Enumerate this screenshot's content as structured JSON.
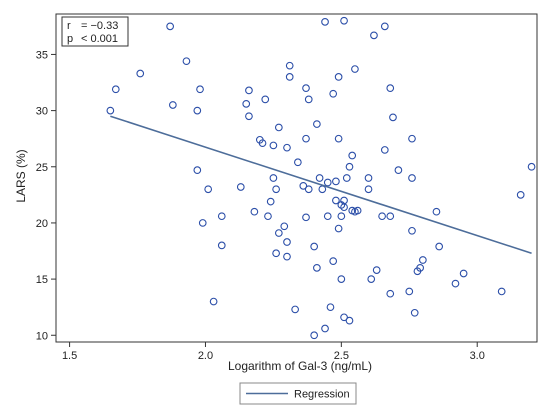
{
  "chart_data": {
    "type": "scatter",
    "xlabel": "Logarithm of Gal-3 (ng/mL)",
    "ylabel": "LARS (%)",
    "xlim": [
      1.45,
      3.22
    ],
    "ylim": [
      9.4,
      38.6
    ],
    "x_ticks": [
      "1.5",
      "2.0",
      "2.5",
      "3.0"
    ],
    "x_tick_values": [
      1.5,
      2.0,
      2.5,
      3.0
    ],
    "y_ticks": [
      "10",
      "15",
      "20",
      "25",
      "30",
      "35"
    ],
    "y_tick_values": [
      10,
      15,
      20,
      25,
      30,
      35
    ],
    "grid": false,
    "legend_position": "bottom",
    "annotation": {
      "r_label": "r",
      "r_value": "= −0.33",
      "p_label": "p",
      "p_value": "< 0.001"
    },
    "series": [
      {
        "type": "scatter",
        "color": "#2b4ea8",
        "points": [
          [
            1.65,
            30.0
          ],
          [
            1.67,
            31.9
          ],
          [
            1.76,
            33.3
          ],
          [
            1.87,
            37.5
          ],
          [
            1.88,
            30.5
          ],
          [
            1.93,
            34.4
          ],
          [
            1.97,
            30.0
          ],
          [
            1.97,
            24.7
          ],
          [
            1.98,
            31.9
          ],
          [
            1.99,
            20.0
          ],
          [
            2.01,
            23.0
          ],
          [
            2.03,
            13.0
          ],
          [
            2.06,
            18.0
          ],
          [
            2.06,
            20.6
          ],
          [
            2.13,
            23.2
          ],
          [
            2.15,
            30.6
          ],
          [
            2.16,
            29.5
          ],
          [
            2.16,
            31.8
          ],
          [
            2.18,
            21.0
          ],
          [
            2.2,
            27.4
          ],
          [
            2.21,
            27.1
          ],
          [
            2.22,
            31.0
          ],
          [
            2.23,
            20.6
          ],
          [
            2.24,
            21.9
          ],
          [
            2.25,
            24.0
          ],
          [
            2.25,
            26.9
          ],
          [
            2.26,
            23.0
          ],
          [
            2.26,
            17.3
          ],
          [
            2.27,
            28.5
          ],
          [
            2.27,
            19.1
          ],
          [
            2.29,
            19.7
          ],
          [
            2.3,
            18.3
          ],
          [
            2.3,
            26.7
          ],
          [
            2.31,
            34.0
          ],
          [
            2.31,
            33.0
          ],
          [
            2.3,
            17.0
          ],
          [
            2.33,
            12.3
          ],
          [
            2.34,
            25.4
          ],
          [
            2.36,
            23.3
          ],
          [
            2.37,
            20.5
          ],
          [
            2.37,
            27.5
          ],
          [
            2.37,
            32.0
          ],
          [
            2.38,
            23.0
          ],
          [
            2.38,
            31.0
          ],
          [
            2.4,
            17.9
          ],
          [
            2.4,
            10.0
          ],
          [
            2.41,
            16.0
          ],
          [
            2.41,
            28.8
          ],
          [
            2.42,
            24.0
          ],
          [
            2.43,
            23.0
          ],
          [
            2.44,
            37.9
          ],
          [
            2.44,
            10.6
          ],
          [
            2.45,
            20.6
          ],
          [
            2.45,
            23.6
          ],
          [
            2.46,
            12.5
          ],
          [
            2.47,
            31.5
          ],
          [
            2.47,
            16.6
          ],
          [
            2.48,
            22.0
          ],
          [
            2.48,
            23.7
          ],
          [
            2.49,
            19.5
          ],
          [
            2.49,
            33.0
          ],
          [
            2.49,
            27.5
          ],
          [
            2.5,
            15.0
          ],
          [
            2.5,
            21.6
          ],
          [
            2.5,
            20.6
          ],
          [
            2.51,
            21.4
          ],
          [
            2.51,
            22.0
          ],
          [
            2.51,
            38.0
          ],
          [
            2.51,
            11.6
          ],
          [
            2.52,
            24.0
          ],
          [
            2.53,
            25.0
          ],
          [
            2.53,
            11.3
          ],
          [
            2.54,
            21.1
          ],
          [
            2.54,
            26.0
          ],
          [
            2.55,
            33.7
          ],
          [
            2.55,
            21.0
          ],
          [
            2.56,
            21.1
          ],
          [
            2.6,
            23.0
          ],
          [
            2.6,
            24.0
          ],
          [
            2.61,
            15.0
          ],
          [
            2.62,
            36.7
          ],
          [
            2.63,
            15.8
          ],
          [
            2.65,
            20.6
          ],
          [
            2.66,
            26.5
          ],
          [
            2.66,
            37.5
          ],
          [
            2.68,
            32.0
          ],
          [
            2.68,
            20.6
          ],
          [
            2.68,
            13.7
          ],
          [
            2.69,
            29.4
          ],
          [
            2.71,
            24.7
          ],
          [
            2.75,
            13.9
          ],
          [
            2.76,
            27.5
          ],
          [
            2.76,
            24.0
          ],
          [
            2.76,
            19.3
          ],
          [
            2.77,
            12.0
          ],
          [
            2.78,
            15.7
          ],
          [
            2.79,
            16.0
          ],
          [
            2.8,
            16.7
          ],
          [
            2.85,
            21.0
          ],
          [
            2.86,
            17.9
          ],
          [
            2.92,
            14.6
          ],
          [
            2.95,
            15.5
          ],
          [
            3.09,
            13.9
          ],
          [
            3.16,
            22.5
          ],
          [
            3.2,
            25.0
          ]
        ]
      }
    ],
    "regression": {
      "name": "Regression",
      "color": "#4d6d9a",
      "x": [
        1.65,
        3.2
      ],
      "y": [
        29.5,
        17.3
      ]
    }
  }
}
